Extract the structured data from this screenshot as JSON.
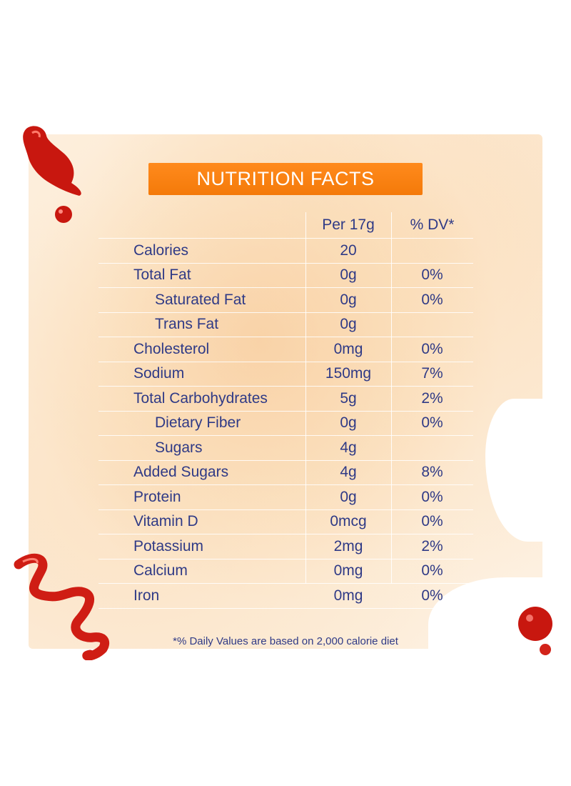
{
  "title": "NUTRITION FACTS",
  "columns": {
    "per": "Per 17g",
    "dv": "% DV*"
  },
  "rows": [
    {
      "name": "Calories",
      "per": "20",
      "dv": "",
      "sub": false
    },
    {
      "name": "Total Fat",
      "per": "0g",
      "dv": "0%",
      "sub": false
    },
    {
      "name": "Saturated Fat",
      "per": "0g",
      "dv": "0%",
      "sub": true
    },
    {
      "name": "Trans Fat",
      "per": "0g",
      "dv": "",
      "sub": true
    },
    {
      "name": "Cholesterol",
      "per": "0mg",
      "dv": "0%",
      "sub": false
    },
    {
      "name": "Sodium",
      "per": "150mg",
      "dv": "7%",
      "sub": false
    },
    {
      "name": "Total Carbohydrates",
      "per": "5g",
      "dv": "2%",
      "sub": false
    },
    {
      "name": "Dietary Fiber",
      "per": "0g",
      "dv": "0%",
      "sub": true
    },
    {
      "name": "Sugars",
      "per": "4g",
      "dv": "",
      "sub": true
    },
    {
      "name": "Added Sugars",
      "per": "4g",
      "dv": "8%",
      "sub": false
    },
    {
      "name": "Protein",
      "per": "0g",
      "dv": "0%",
      "sub": false
    },
    {
      "name": "Vitamin D",
      "per": "0mcg",
      "dv": "0%",
      "sub": false
    },
    {
      "name": "Potassium",
      "per": "2mg",
      "dv": "2%",
      "sub": false
    },
    {
      "name": "Calcium",
      "per": "0mg",
      "dv": "0%",
      "sub": false
    },
    {
      "name": "Iron",
      "per": "0mg",
      "dv": "0%",
      "sub": false
    }
  ],
  "footnote": "*% Daily Values are based on 2,000 calorie diet",
  "colors": {
    "banner": "#f47a0a",
    "text": "#2f3a86",
    "sauce": "#d0201a",
    "background": "#fdf0e0"
  }
}
